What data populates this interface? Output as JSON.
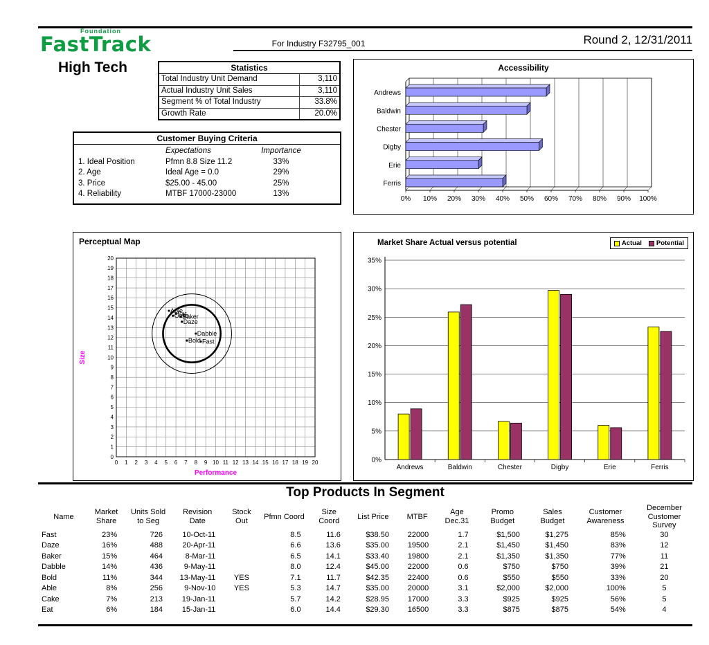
{
  "colors": {
    "logo_green": "#0f9d44",
    "axis_label_magenta": "#ff00ff",
    "accessibility_bar": "#9999ff",
    "accessibility_bar_top": "#c6c6ff",
    "accessibility_bar_side": "#6b6bc4",
    "actual_yellow": "#ffff00",
    "potential_plum": "#993366"
  },
  "header": {
    "logo_top": "Foundation",
    "logo_main": "FastTrack",
    "industry": "For Industry F32795_001",
    "round": "Round 2, 12/31/2011"
  },
  "segment": {
    "title": "High Tech"
  },
  "statistics": {
    "title": "Statistics",
    "rows": [
      {
        "label": "Total Industry Unit Demand",
        "value": "3,110"
      },
      {
        "label": "Actual Industry Unit Sales",
        "value": "3,110"
      },
      {
        "label": "Segment % of Total Industry",
        "value": "33.8%"
      },
      {
        "label": "Growth Rate",
        "value": "20.0%"
      }
    ]
  },
  "buying_criteria": {
    "title": "Customer Buying Criteria",
    "col_expectations": "Expectations",
    "col_importance": "Importance",
    "rows": [
      {
        "label": "1. Ideal Position",
        "expectation": "Pfmn 8.8 Size 11.2",
        "importance": "33%"
      },
      {
        "label": "2. Age",
        "expectation": "Ideal Age = 0.0",
        "importance": "29%"
      },
      {
        "label": "3. Price",
        "expectation": "$25.00 - 45.00",
        "importance": "25%"
      },
      {
        "label": "4. Reliability",
        "expectation": "MTBF 17000-23000",
        "importance": "13%"
      }
    ]
  },
  "chart_data": [
    {
      "id": "accessibility",
      "type": "bar",
      "orientation": "horizontal",
      "style": "3d",
      "title": "Accessibility",
      "categories": [
        "Andrews",
        "Baldwin",
        "Chester",
        "Digby",
        "Erie",
        "Ferris"
      ],
      "values": [
        58,
        50,
        32,
        55,
        30,
        40
      ],
      "unit": "%",
      "xlim": [
        0,
        100
      ],
      "xticks": [
        "0%",
        "10%",
        "20%",
        "30%",
        "40%",
        "50%",
        "60%",
        "70%",
        "80%",
        "90%",
        "100%"
      ]
    },
    {
      "id": "perceptual-map",
      "type": "scatter",
      "title": "Perceptual Map",
      "xlabel": "Performance",
      "ylabel": "Size",
      "xlim": [
        0,
        20
      ],
      "ylim": [
        0,
        20
      ],
      "grid": true,
      "points": [
        {
          "name": "Able",
          "x": 5.3,
          "y": 14.7
        },
        {
          "name": "Cake",
          "x": 5.7,
          "y": 14.2
        },
        {
          "name": "Eat",
          "x": 6.0,
          "y": 14.4
        },
        {
          "name": "Baker",
          "x": 6.5,
          "y": 14.1
        },
        {
          "name": "Daze",
          "x": 6.6,
          "y": 13.6
        },
        {
          "name": "Bold",
          "x": 7.1,
          "y": 11.7
        },
        {
          "name": "Dabble",
          "x": 8.0,
          "y": 12.4
        },
        {
          "name": "Fast",
          "x": 8.5,
          "y": 11.6
        }
      ],
      "circles": [
        {
          "cx": 7.6,
          "cy": 12.4,
          "r": 4.0,
          "stroke_width": 1
        },
        {
          "cx": 7.6,
          "cy": 12.4,
          "r": 2.9,
          "stroke_width": 2.6
        }
      ]
    },
    {
      "id": "market-share",
      "type": "bar",
      "title": "Market Share Actual versus potential",
      "categories": [
        "Andrews",
        "Baldwin",
        "Chester",
        "Digby",
        "Erie",
        "Ferris"
      ],
      "series": [
        {
          "name": "Actual",
          "color": "#ffff00",
          "values": [
            8.0,
            25.9,
            6.7,
            29.7,
            6.0,
            23.3
          ]
        },
        {
          "name": "Potential",
          "color": "#993366",
          "values": [
            8.9,
            27.2,
            6.4,
            29.0,
            5.6,
            22.5
          ]
        }
      ],
      "unit": "%",
      "ylim": [
        0,
        35
      ],
      "yticks": [
        "0%",
        "5%",
        "10%",
        "15%",
        "20%",
        "25%",
        "30%",
        "35%"
      ],
      "legend_position": "top-right",
      "grid": true
    }
  ],
  "top_products": {
    "title": "Top Products In Segment",
    "columns": [
      [
        "Name"
      ],
      [
        "Market",
        "Share"
      ],
      [
        "Units Sold",
        "to Seg"
      ],
      [
        "Revision",
        "Date"
      ],
      [
        "Stock",
        "Out"
      ],
      [
        "Pfmn Coord"
      ],
      [
        "Size",
        "Coord"
      ],
      [
        "List Price"
      ],
      [
        "MTBF"
      ],
      [
        "Age",
        "Dec.31"
      ],
      [
        "Promo",
        "Budget"
      ],
      [
        "Sales",
        "Budget"
      ],
      [
        "Customer",
        "Awareness"
      ],
      [
        "December",
        "Customer",
        "Survey"
      ]
    ],
    "rows": [
      [
        "Fast",
        "23%",
        "726",
        "10-Oct-11",
        "",
        "8.5",
        "11.6",
        "$38.50",
        "22000",
        "1.7",
        "$1,500",
        "$1,275",
        "85%",
        "30"
      ],
      [
        "Daze",
        "16%",
        "488",
        "20-Apr-11",
        "",
        "6.6",
        "13.6",
        "$35.00",
        "19500",
        "2.1",
        "$1,450",
        "$1,450",
        "83%",
        "12"
      ],
      [
        "Baker",
        "15%",
        "464",
        "8-Mar-11",
        "",
        "6.5",
        "14.1",
        "$33.40",
        "19800",
        "2.1",
        "$1,350",
        "$1,350",
        "77%",
        "11"
      ],
      [
        "Dabble",
        "14%",
        "436",
        "9-May-11",
        "",
        "8.0",
        "12.4",
        "$45.00",
        "22000",
        "0.6",
        "$750",
        "$750",
        "39%",
        "21"
      ],
      [
        "Bold",
        "11%",
        "344",
        "13-May-11",
        "YES",
        "7.1",
        "11.7",
        "$42.35",
        "22400",
        "0.6",
        "$550",
        "$550",
        "33%",
        "20"
      ],
      [
        "Able",
        "8%",
        "256",
        "9-Nov-10",
        "YES",
        "5.3",
        "14.7",
        "$35.00",
        "20000",
        "3.1",
        "$2,000",
        "$2,000",
        "100%",
        "5"
      ],
      [
        "Cake",
        "7%",
        "213",
        "19-Jan-11",
        "",
        "5.7",
        "14.2",
        "$28.95",
        "17000",
        "3.3",
        "$925",
        "$925",
        "56%",
        "5"
      ],
      [
        "Eat",
        "6%",
        "184",
        "15-Jan-11",
        "",
        "6.0",
        "14.4",
        "$29.30",
        "16500",
        "3.3",
        "$875",
        "$875",
        "54%",
        "4"
      ]
    ]
  }
}
